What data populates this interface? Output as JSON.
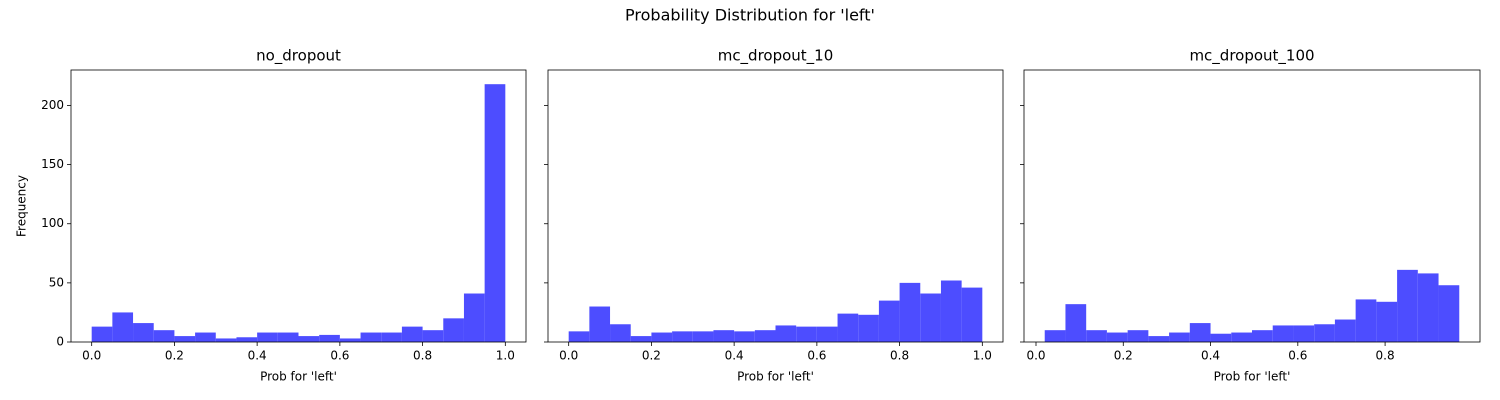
{
  "title": "Probability Distribution for 'left'",
  "chart_data": [
    {
      "type": "histogram",
      "title": "no_dropout",
      "xlabel": "Prob for 'left'",
      "ylabel": "Frequency",
      "color": "#4d4dff",
      "bins": [
        0,
        0.05,
        0.1,
        0.15,
        0.2,
        0.25,
        0.3,
        0.35,
        0.4,
        0.45,
        0.5,
        0.55,
        0.6,
        0.65,
        0.7,
        0.75,
        0.8,
        0.85,
        0.9,
        0.95,
        1
      ],
      "values": [
        13,
        25,
        16,
        10,
        5,
        8,
        3,
        4,
        8,
        8,
        5,
        6,
        3,
        8,
        8,
        13,
        10,
        20,
        41,
        218
      ],
      "xlim": [
        -0.05,
        1.05
      ],
      "xticks": [
        {
          "value": 0,
          "label": "0.0"
        },
        {
          "value": 0.2,
          "label": "0.2"
        },
        {
          "value": 0.4,
          "label": "0.4"
        },
        {
          "value": 0.6,
          "label": "0.6"
        },
        {
          "value": 0.8,
          "label": "0.8"
        },
        {
          "value": 1,
          "label": "1.0"
        }
      ],
      "ylim": [
        0,
        230
      ],
      "yticks": [
        0,
        50,
        100,
        150,
        200
      ]
    },
    {
      "type": "histogram",
      "title": "mc_dropout_10",
      "xlabel": "Prob for 'left'",
      "color": "#4d4dff",
      "bins": [
        0,
        0.05,
        0.1,
        0.15,
        0.2,
        0.25,
        0.3,
        0.35,
        0.4,
        0.45,
        0.5,
        0.55,
        0.6,
        0.65,
        0.7,
        0.75,
        0.8,
        0.85,
        0.9,
        0.95,
        1
      ],
      "values": [
        9,
        30,
        15,
        5,
        8,
        9,
        9,
        10,
        9,
        10,
        14,
        13,
        13,
        24,
        23,
        35,
        50,
        41,
        52,
        46
      ],
      "xlim": [
        -0.05,
        1.05
      ],
      "xticks": [
        {
          "value": 0,
          "label": "0.0"
        },
        {
          "value": 0.2,
          "label": "0.2"
        },
        {
          "value": 0.4,
          "label": "0.4"
        },
        {
          "value": 0.6,
          "label": "0.6"
        },
        {
          "value": 0.8,
          "label": "0.8"
        },
        {
          "value": 1,
          "label": "1.0"
        }
      ],
      "ylim": [
        0,
        230
      ],
      "yticks": [
        0,
        50,
        100,
        150,
        200
      ]
    },
    {
      "type": "histogram",
      "title": "mc_dropout_100",
      "xlabel": "Prob for 'left'",
      "color": "#4d4dff",
      "bins": [
        0.02,
        0.0675,
        0.115,
        0.1625,
        0.21,
        0.2575,
        0.305,
        0.3525,
        0.4,
        0.4475,
        0.495,
        0.5425,
        0.59,
        0.6375,
        0.685,
        0.7325,
        0.78,
        0.8275,
        0.875,
        0.9225,
        0.97
      ],
      "values": [
        10,
        32,
        10,
        8,
        10,
        5,
        8,
        16,
        7,
        8,
        10,
        14,
        14,
        15,
        19,
        36,
        34,
        61,
        58,
        48
      ],
      "xlim": [
        -0.0275,
        1.0175
      ],
      "xticks": [
        {
          "value": 0,
          "label": "0.0"
        },
        {
          "value": 0.2,
          "label": "0.2"
        },
        {
          "value": 0.4,
          "label": "0.4"
        },
        {
          "value": 0.6,
          "label": "0.6"
        },
        {
          "value": 0.8,
          "label": "0.8"
        }
      ],
      "ylim": [
        0,
        230
      ],
      "yticks": [
        0,
        50,
        100,
        150,
        200
      ]
    }
  ]
}
